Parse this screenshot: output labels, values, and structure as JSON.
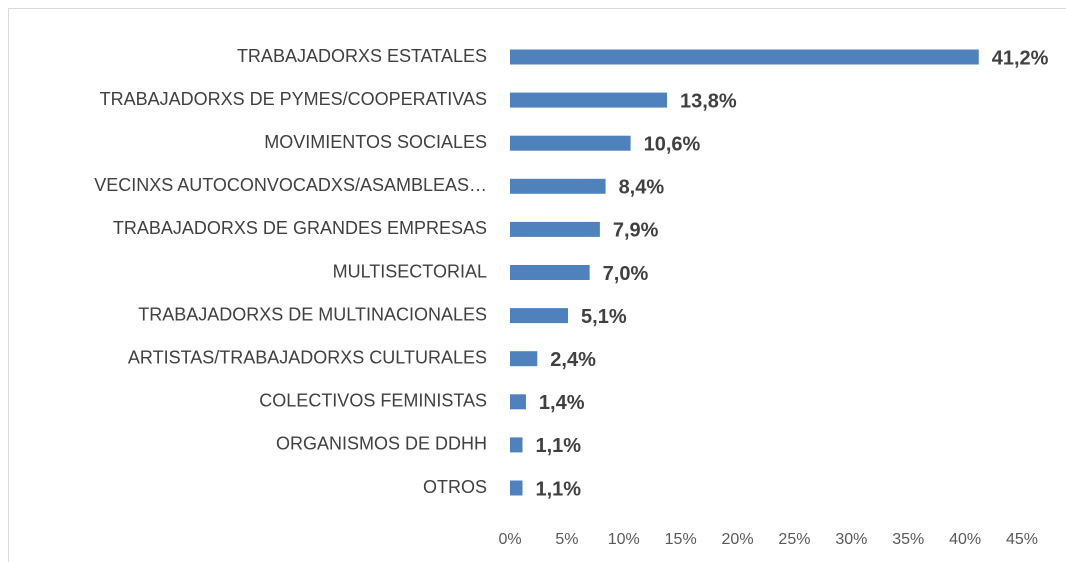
{
  "chart_data": {
    "type": "bar",
    "orientation": "horizontal",
    "categories": [
      "TRABAJADORXS ESTATALES",
      "TRABAJADORXS DE PYMES/COOPERATIVAS",
      "MOVIMIENTOS SOCIALES",
      "VECINXS AUTOCONVOCADXS/ASAMBLEAS…",
      "TRABAJADORXS DE GRANDES EMPRESAS",
      "MULTISECTORIAL",
      "TRABAJADORXS DE MULTINACIONALES",
      "ARTISTAS/TRABAJADORXS CULTURALES",
      "COLECTIVOS FEMINISTAS",
      "ORGANISMOS DE DDHH",
      "OTROS"
    ],
    "values": [
      41.2,
      13.8,
      10.6,
      8.4,
      7.9,
      7.0,
      5.1,
      2.4,
      1.4,
      1.1,
      1.1
    ],
    "value_labels": [
      "41,2%",
      "13,8%",
      "10,6%",
      "8,4%",
      "7,9%",
      "7,0%",
      "5,1%",
      "2,4%",
      "1,4%",
      "1,1%",
      "1,1%"
    ],
    "color": "#4f81bd",
    "xlim": [
      0,
      45
    ],
    "xticks": [
      {
        "value": 0,
        "label": "0%"
      },
      {
        "value": 5,
        "label": "5%"
      },
      {
        "value": 10,
        "label": "10%"
      },
      {
        "value": 15,
        "label": "15%"
      },
      {
        "value": 20,
        "label": "20%"
      },
      {
        "value": 25,
        "label": "25%"
      },
      {
        "value": 30,
        "label": "30%"
      },
      {
        "value": 35,
        "label": "35%"
      },
      {
        "value": 40,
        "label": "40%"
      },
      {
        "value": 45,
        "label": "45%"
      }
    ],
    "grid": false
  }
}
